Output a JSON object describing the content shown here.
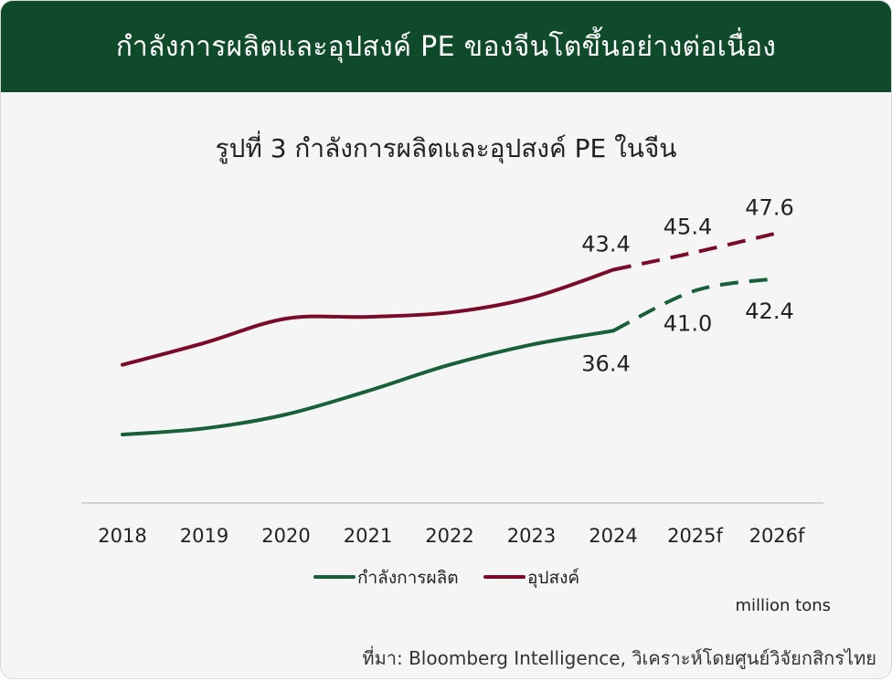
{
  "header": {
    "title": "กำลังการผลิตและอุปสงค์ PE ของจีนโตขึ้นอย่างต่อเนื่อง"
  },
  "chart_data": {
    "type": "line",
    "title": "รูปที่ 3 กำลังการผลิตและอุปสงค์ PE ในจีน",
    "categories": [
      "2018",
      "2019",
      "2020",
      "2021",
      "2022",
      "2023",
      "2024",
      "2025f",
      "2026f"
    ],
    "series": [
      {
        "name": "กำลังการผลิต",
        "color": "#17603a",
        "values": [
          24.5,
          25.2,
          26.8,
          29.5,
          32.5,
          34.8,
          36.4,
          41.0,
          42.4
        ],
        "labels": {
          "6": "36.4",
          "7": "41.0",
          "8": "42.4"
        }
      },
      {
        "name": "อุปสงค์",
        "color": "#7a0a27",
        "values": [
          32.5,
          35.0,
          37.8,
          38.0,
          38.5,
          40.2,
          43.4,
          45.4,
          47.6
        ],
        "labels": {
          "6": "43.4",
          "7": "45.4",
          "8": "47.6"
        }
      }
    ],
    "forecast_from_index": 6,
    "unit": "million tons",
    "grid": false,
    "legend_position": "bottom"
  },
  "source": "ที่มา: Bloomberg Intelligence, วิเคราะห์โดยศูนย์วิจัยกสิกรไทย"
}
